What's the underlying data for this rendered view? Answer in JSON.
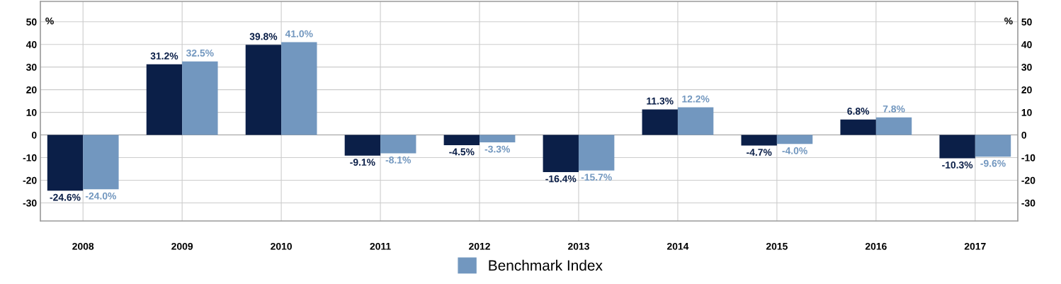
{
  "chart_data": {
    "type": "bar",
    "categories": [
      "2008",
      "2009",
      "2010",
      "2011",
      "2012",
      "2013",
      "2014",
      "2015",
      "2016",
      "2017"
    ],
    "series": [
      {
        "color": "#0b1f48",
        "values": [
          -24.6,
          31.2,
          39.8,
          -9.1,
          -4.5,
          -16.4,
          11.3,
          -4.7,
          6.8,
          -10.3
        ],
        "value_labels": [
          "-24.6%",
          "31.2%",
          "39.8%",
          "-9.1%",
          "-4.5%",
          "-16.4%",
          "11.3%",
          "-4.7%",
          "6.8%",
          "-10.3%"
        ]
      },
      {
        "name": "Benchmark Index",
        "color": "#7297bf",
        "values": [
          -24.0,
          32.5,
          41.0,
          -8.1,
          -3.3,
          -15.7,
          12.2,
          -4.0,
          7.8,
          -9.6
        ],
        "value_labels": [
          "-24.0%",
          "32.5%",
          "41.0%",
          "-8.1%",
          "-3.3%",
          "-15.7%",
          "12.2%",
          "-4.0%",
          "7.8%",
          "-9.6%"
        ]
      }
    ],
    "ylim": [
      -38,
      59
    ],
    "yticks": [
      -30,
      -20,
      -10,
      0,
      10,
      20,
      30,
      40,
      50
    ],
    "y2lim": [
      -38,
      59
    ],
    "y2ticks": [
      -30,
      -20,
      -10,
      0,
      10,
      20,
      30,
      40,
      50
    ],
    "ylabel": "%",
    "y2label": "%",
    "grid": true,
    "legend": "bottom"
  }
}
